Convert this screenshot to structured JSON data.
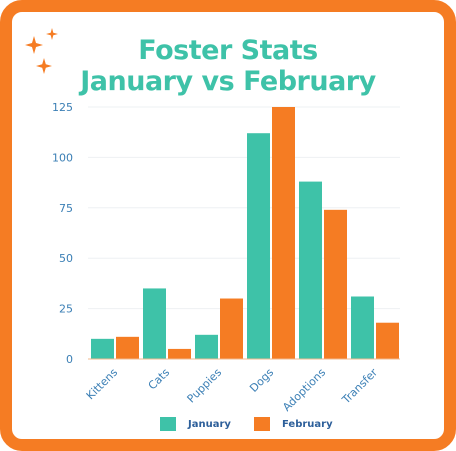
{
  "title_line1": "Foster Stats",
  "title_line2": "January vs February",
  "colors": {
    "january": "#3ec2a8",
    "february": "#f57c23",
    "border": "#f57c23",
    "title": "#3ec2a8",
    "axis_text": "#3b7fb5"
  },
  "chart_data": {
    "type": "bar",
    "title": "Foster Stats January vs February",
    "xlabel": "",
    "ylabel": "",
    "categories": [
      "Kittens",
      "Cats",
      "Puppies",
      "Dogs",
      "Adoptions",
      "Transfer"
    ],
    "series": [
      {
        "name": "January",
        "values": [
          10,
          35,
          12,
          112,
          88,
          31
        ]
      },
      {
        "name": "February",
        "values": [
          11,
          5,
          30,
          125,
          74,
          18
        ]
      }
    ],
    "ylim": [
      0,
      125
    ],
    "yticks": [
      0,
      25,
      50,
      75,
      100,
      125
    ],
    "grid": true,
    "legend_position": "bottom"
  }
}
